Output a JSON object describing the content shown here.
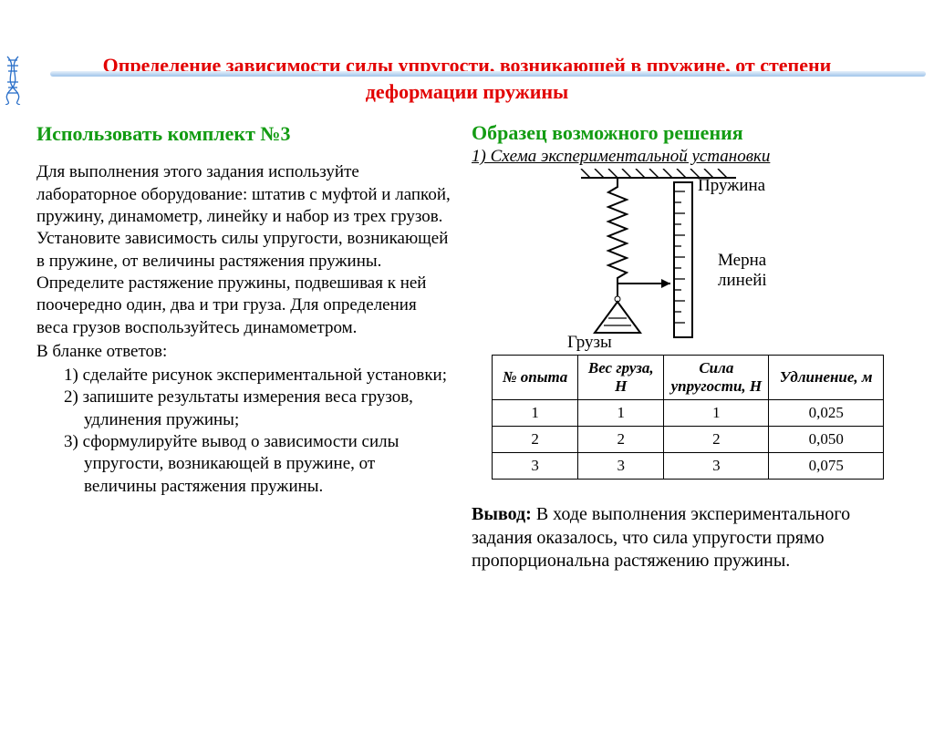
{
  "title": "Определение зависимости силы упругости, возникающей в пружине, от степени деформации пружины",
  "left": {
    "heading": "Использовать комплект №3",
    "para1": "Для выполнения этого задания используйте лабораторное оборудование: штатив с муфтой и лапкой, пружину, динамометр, линейку и набор из трех грузов. Установите зависимость силы упругости, возникающей в пружине, от величины растяжения пружины. Определите растяжение пружины, подвешивая к ней поочередно один, два и три груза. Для определения веса грузов воспользуйтесь динамометром.",
    "para2": "В бланке ответов:",
    "items": [
      "1) сделайте рисунок экспериментальной установки;",
      "2) запишите результаты измерения веса грузов, удлинения пружины;",
      "3) сформулируйте вывод о зависимости силы упругости, возникающей в пружине, от величины растяжения пружины."
    ]
  },
  "right": {
    "heading": "Образец возможного решения",
    "caption": "1) Схема экспериментальной установки",
    "labels": {
      "spring": "Пружина",
      "ruler1": "Мерна",
      "ruler2": "линейі",
      "weights": "Грузы"
    },
    "conclusion_label": "Вывод:",
    "conclusion_text": " В ходе выполнения экспериментального задания оказалось, что сила упругости прямо пропорциональна растяжению пружины."
  },
  "table": {
    "headers": [
      "№ опыта",
      "Вес груза, Н",
      "Сила упругости, Н",
      "Удлинение, м"
    ],
    "rows": [
      [
        "1",
        "1",
        "1",
        "0,025"
      ],
      [
        "2",
        "2",
        "2",
        "0,050"
      ],
      [
        "3",
        "3",
        "3",
        "0,075"
      ]
    ],
    "col_widths": [
      "90px",
      "90px",
      "110px",
      "120px"
    ]
  },
  "style": {
    "title_color": "#e20000",
    "green": "#139c13",
    "border_blue": "#2a6fc9"
  }
}
